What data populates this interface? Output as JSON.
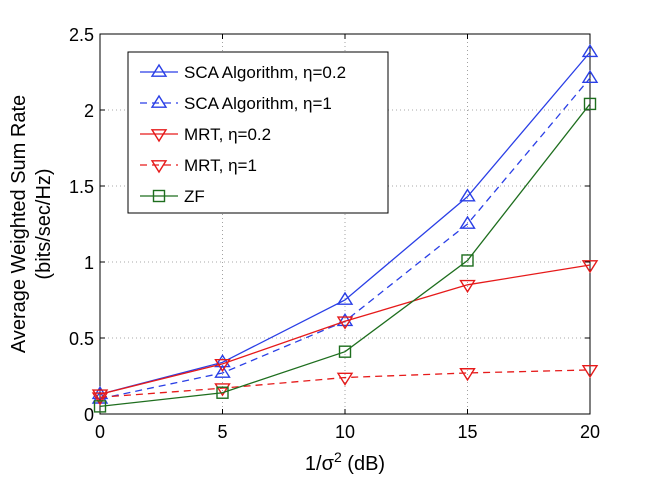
{
  "chart_data": {
    "type": "line",
    "title": "",
    "xlabel": "1/σ",
    "xlabel_sup": "2",
    "xlabel_suffix": " (dB)",
    "ylabel_line1": "Average Weighted Sum Rate",
    "ylabel_line2": "(bits/sec/Hz)",
    "x": [
      0,
      5,
      10,
      15,
      20
    ],
    "xlim": [
      0,
      20
    ],
    "ylim": [
      0,
      2.5
    ],
    "xticks": [
      0,
      5,
      10,
      15,
      20
    ],
    "yticks": [
      0,
      0.5,
      1,
      1.5,
      2,
      2.5
    ],
    "xtick_labels": [
      "0",
      "5",
      "10",
      "15",
      "20"
    ],
    "ytick_labels": [
      "0",
      "0.5",
      "1",
      "1.5",
      "2",
      "2.5"
    ],
    "grid": true,
    "legend_position": "top-left",
    "series": [
      {
        "name": "SCA Algorithm, η=0.2",
        "color": "#2a3fe6",
        "dash": "solid",
        "marker": "triangle-up",
        "values": [
          0.13,
          0.34,
          0.75,
          1.43,
          2.38
        ]
      },
      {
        "name": "SCA Algorithm, η=1",
        "color": "#2a3fe6",
        "dash": "dashed",
        "marker": "triangle-up",
        "values": [
          0.1,
          0.27,
          0.61,
          1.25,
          2.21
        ]
      },
      {
        "name": "MRT, η=0.2",
        "color": "#e61a1a",
        "dash": "solid",
        "marker": "triangle-down",
        "values": [
          0.13,
          0.33,
          0.61,
          0.85,
          0.98
        ]
      },
      {
        "name": "MRT, η=1",
        "color": "#e61a1a",
        "dash": "dashed",
        "marker": "triangle-down",
        "values": [
          0.11,
          0.17,
          0.24,
          0.27,
          0.29
        ]
      },
      {
        "name": "ZF",
        "color": "#1e6e1e",
        "dash": "solid",
        "marker": "square",
        "values": [
          0.05,
          0.14,
          0.41,
          1.01,
          2.04
        ]
      }
    ]
  }
}
